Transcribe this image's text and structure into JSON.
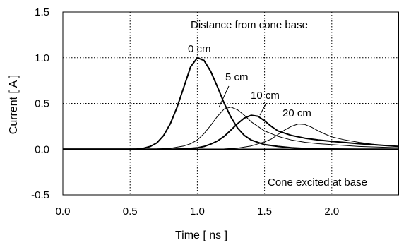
{
  "chart_data": {
    "type": "line",
    "title": "",
    "xlabel": "Time [ ns ]",
    "ylabel": "Current [ A ]",
    "xlim": [
      0.0,
      2.5
    ],
    "ylim": [
      -0.5,
      1.5
    ],
    "x_ticks": [
      "0.0",
      "0.5",
      "1.0",
      "1.5",
      "2.0"
    ],
    "y_ticks": [
      "1.5",
      "1.0",
      "0.5",
      "0.0",
      "-0.5"
    ],
    "grid": "dotted vertical and horizontal",
    "annotations": {
      "top": "Distance from cone base",
      "bottom": "Cone excited at base"
    },
    "series": [
      {
        "name": "0 cm",
        "color": "#000000",
        "x": [
          0.0,
          0.5,
          0.55,
          0.6,
          0.65,
          0.7,
          0.75,
          0.8,
          0.85,
          0.9,
          0.95,
          1.0,
          1.05,
          1.1,
          1.15,
          1.2,
          1.25,
          1.3,
          1.35,
          1.4,
          1.5,
          1.6,
          1.7,
          1.8,
          1.9,
          2.0,
          2.2,
          2.5
        ],
        "y": [
          0.0,
          0.0,
          0.002,
          0.01,
          0.03,
          0.07,
          0.15,
          0.28,
          0.46,
          0.68,
          0.9,
          1.0,
          0.97,
          0.85,
          0.68,
          0.5,
          0.35,
          0.23,
          0.15,
          0.1,
          0.05,
          0.03,
          0.015,
          0.008,
          0.004,
          0.002,
          0.0,
          0.0
        ]
      },
      {
        "name": "5 cm",
        "color": "#000000",
        "x": [
          0.0,
          0.6,
          0.7,
          0.8,
          0.9,
          0.95,
          1.0,
          1.05,
          1.1,
          1.15,
          1.2,
          1.25,
          1.3,
          1.35,
          1.4,
          1.5,
          1.6,
          1.7,
          1.8,
          1.9,
          2.0,
          2.2,
          2.5
        ],
        "y": [
          0.0,
          0.0,
          0.003,
          0.01,
          0.035,
          0.06,
          0.1,
          0.17,
          0.26,
          0.36,
          0.44,
          0.46,
          0.43,
          0.37,
          0.3,
          0.2,
          0.14,
          0.1,
          0.075,
          0.06,
          0.05,
          0.03,
          0.015
        ]
      },
      {
        "name": "10 cm",
        "color": "#000000",
        "x": [
          0.0,
          0.8,
          0.9,
          1.0,
          1.05,
          1.1,
          1.15,
          1.2,
          1.25,
          1.3,
          1.35,
          1.4,
          1.45,
          1.5,
          1.55,
          1.6,
          1.7,
          1.8,
          1.9,
          2.0,
          2.2,
          2.5
        ],
        "y": [
          0.0,
          0.0,
          0.003,
          0.015,
          0.03,
          0.055,
          0.09,
          0.14,
          0.21,
          0.28,
          0.34,
          0.37,
          0.36,
          0.31,
          0.25,
          0.2,
          0.15,
          0.12,
          0.1,
          0.085,
          0.06,
          0.03
        ]
      },
      {
        "name": "20 cm",
        "color": "#000000",
        "x": [
          0.0,
          1.1,
          1.2,
          1.3,
          1.4,
          1.5,
          1.55,
          1.6,
          1.65,
          1.7,
          1.75,
          1.8,
          1.85,
          1.9,
          1.95,
          2.0,
          2.1,
          2.2,
          2.3,
          2.4,
          2.5
        ],
        "y": [
          0.0,
          0.0,
          0.003,
          0.012,
          0.035,
          0.08,
          0.11,
          0.16,
          0.21,
          0.25,
          0.275,
          0.27,
          0.24,
          0.2,
          0.165,
          0.135,
          0.1,
          0.075,
          0.055,
          0.04,
          0.03
        ]
      }
    ]
  },
  "curve_labels": [
    {
      "text": "0 cm"
    },
    {
      "text": "5 cm"
    },
    {
      "text": "10 cm"
    },
    {
      "text": "20 cm"
    }
  ]
}
